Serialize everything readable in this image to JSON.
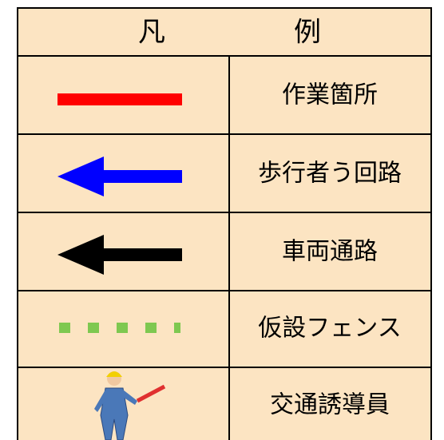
{
  "header": {
    "title": [
      "凡",
      "例"
    ]
  },
  "rows": [
    {
      "label": "作業箇所"
    },
    {
      "label": "歩行者う回路"
    },
    {
      "label": "車両通路"
    },
    {
      "label": "仮設フェンス"
    },
    {
      "label": "交通誘導員"
    }
  ]
}
